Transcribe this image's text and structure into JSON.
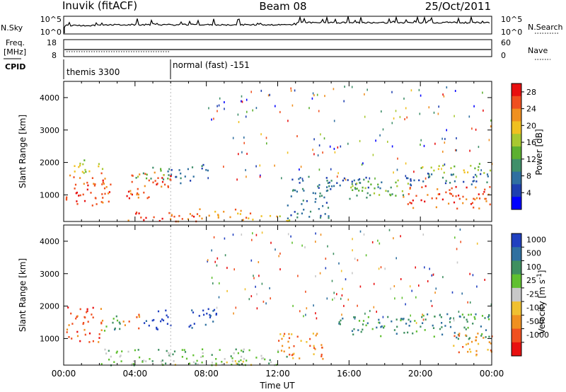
{
  "header": {
    "station": "Inuvik (fitACF)",
    "beam": "Beam 08",
    "date": "25/Oct/2011"
  },
  "top_panels": {
    "nsky_label": "N.Sky",
    "nsky_ticks": [
      "10^5",
      "10^0"
    ],
    "nsearch_label": "N.Search",
    "nsearch_ticks": [
      "10^5",
      "10^0"
    ],
    "freq_label_1": "Freq.",
    "freq_label_2": "[MHz]",
    "freq_ticks": [
      "18",
      "8"
    ],
    "nave_label": "Nave",
    "nave_ticks": [
      "60",
      "0"
    ],
    "cpid_label": "CPID",
    "cpid_mode_1": "themis 3300",
    "cpid_mode_2": "normal (fast) -151"
  },
  "chart_data": [
    {
      "type": "heatmap",
      "title": "",
      "xlabel": "",
      "ylabel": "Slant Range [km]",
      "x_ticks": [
        "00:00",
        "04:00",
        "08:00",
        "12:00",
        "16:00",
        "20:00",
        "00:00"
      ],
      "x_range_hours": [
        0,
        24
      ],
      "y_ticks": [
        1000,
        2000,
        3000,
        4000
      ],
      "y_range": [
        180,
        4500
      ],
      "colorbar": {
        "label": "Power [dB]",
        "ticks": [
          "4",
          "8",
          "12",
          "16",
          "20",
          "24",
          "28"
        ],
        "range": [
          0,
          30
        ],
        "colors": [
          "#0000ff",
          "#1e3fb0",
          "#2f6fa0",
          "#3f8f6a",
          "#5cb030",
          "#a8c830",
          "#f0c020",
          "#f09020",
          "#f05020",
          "#e81010"
        ]
      },
      "regions": [
        {
          "t0": 0.1,
          "t1": 2.6,
          "r0": 600,
          "r1": 1700,
          "value": 28
        },
        {
          "t0": 0.3,
          "t1": 2.6,
          "r0": 1700,
          "r1": 2100,
          "value": 16
        },
        {
          "t0": 2.6,
          "t1": 7.5,
          "r0": 200,
          "r1": 500,
          "value": 28
        },
        {
          "t0": 3.5,
          "t1": 6.0,
          "r0": 900,
          "r1": 1800,
          "value": 26
        },
        {
          "t0": 4.0,
          "t1": 6.0,
          "r0": 1500,
          "r1": 1900,
          "value": 12
        },
        {
          "t0": 5.8,
          "t1": 7.3,
          "r0": 1300,
          "r1": 1900,
          "value": 8
        },
        {
          "t0": 7.5,
          "t1": 10.5,
          "r0": 250,
          "r1": 600,
          "value": 24
        },
        {
          "t0": 7.5,
          "t1": 8.2,
          "r0": 1600,
          "r1": 2000,
          "value": 8
        },
        {
          "t0": 10.5,
          "t1": 13.0,
          "r0": 200,
          "r1": 400,
          "value": 20
        },
        {
          "t0": 12.5,
          "t1": 15.0,
          "r0": 300,
          "r1": 1600,
          "value": 6
        },
        {
          "t0": 14.5,
          "t1": 18.0,
          "r0": 1200,
          "r1": 1600,
          "value": 8
        },
        {
          "t0": 16.0,
          "t1": 19.5,
          "r0": 900,
          "r1": 1500,
          "value": 12
        },
        {
          "t0": 19.0,
          "t1": 24.0,
          "r0": 600,
          "r1": 1300,
          "value": 28
        },
        {
          "t0": 19.0,
          "t1": 24.0,
          "r0": 1300,
          "r1": 1700,
          "value": 8
        },
        {
          "t0": 20.0,
          "t1": 24.0,
          "r0": 1700,
          "r1": 2000,
          "value": 18
        }
      ]
    },
    {
      "type": "heatmap",
      "title": "",
      "xlabel": "Time UT",
      "ylabel": "Slant Range [km]",
      "x_ticks": [
        "00:00",
        "04:00",
        "08:00",
        "12:00",
        "16:00",
        "20:00",
        "00:00"
      ],
      "x_range_hours": [
        0,
        24
      ],
      "y_ticks": [
        1000,
        2000,
        3000,
        4000
      ],
      "y_range": [
        180,
        4500
      ],
      "colorbar": {
        "label": "Velocity [m s^-1]",
        "ticks": [
          "1000",
          "500",
          "100",
          "25",
          "-25",
          "-100",
          "-500",
          "-1000"
        ],
        "colors": [
          "#2040c0",
          "#2f70a0",
          "#3f9060",
          "#60c030",
          "#c8c8c8",
          "#f0c030",
          "#f09020",
          "#f05020",
          "#e81010"
        ]
      },
      "regions": [
        {
          "t0": 0.1,
          "t1": 2.2,
          "r0": 900,
          "r1": 2000,
          "color_index": 7
        },
        {
          "t0": 2.2,
          "t1": 3.3,
          "r0": 1200,
          "r1": 1800,
          "color_index": 2
        },
        {
          "t0": 3.3,
          "t1": 4.3,
          "r0": 1300,
          "r1": 1800,
          "color_index": 6
        },
        {
          "t0": 4.3,
          "t1": 6.0,
          "r0": 1300,
          "r1": 1900,
          "color_index": 0
        },
        {
          "t0": 7.0,
          "t1": 8.7,
          "r0": 1300,
          "r1": 2000,
          "color_index": 0
        },
        {
          "t0": 2.0,
          "t1": 12.5,
          "r0": 200,
          "r1": 700,
          "color_index": 3
        },
        {
          "t0": 3.0,
          "t1": 12.0,
          "r0": 200,
          "r1": 350,
          "color_index": 4
        },
        {
          "t0": 12.0,
          "t1": 14.5,
          "r0": 300,
          "r1": 1200,
          "color_index": 6
        },
        {
          "t0": 15.0,
          "t1": 19.5,
          "r0": 1100,
          "r1": 1700,
          "color_index": 2
        },
        {
          "t0": 19.5,
          "t1": 24.0,
          "r0": 1000,
          "r1": 1800,
          "color_index": 2
        },
        {
          "t0": 21.5,
          "t1": 24.0,
          "r0": 500,
          "r1": 1200,
          "color_index": 6
        }
      ]
    }
  ]
}
